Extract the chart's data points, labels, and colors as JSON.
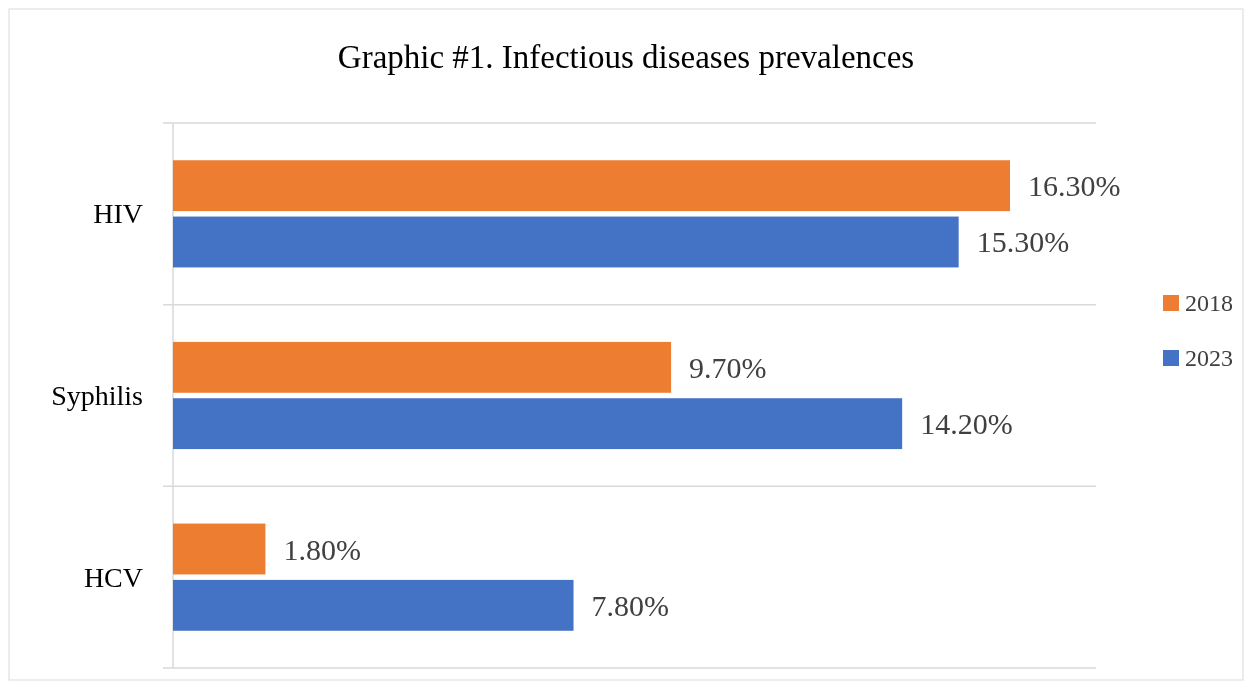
{
  "chart_data": {
    "type": "bar",
    "orientation": "horizontal",
    "title": "Graphic #1. Infectious diseases prevalences",
    "categories": [
      "HIV",
      "Syphilis",
      "HCV"
    ],
    "series": [
      {
        "name": "2018",
        "color": "#ed7d31",
        "values": [
          16.3,
          9.7,
          1.8
        ],
        "value_labels": [
          "16.30%",
          "9.70%",
          "1.80%"
        ]
      },
      {
        "name": "2023",
        "color": "#4472c4",
        "values": [
          15.3,
          14.2,
          7.8
        ],
        "value_labels": [
          "15.30%",
          "14.20%",
          "7.80%"
        ]
      }
    ],
    "grid": "y",
    "legend": "right"
  }
}
